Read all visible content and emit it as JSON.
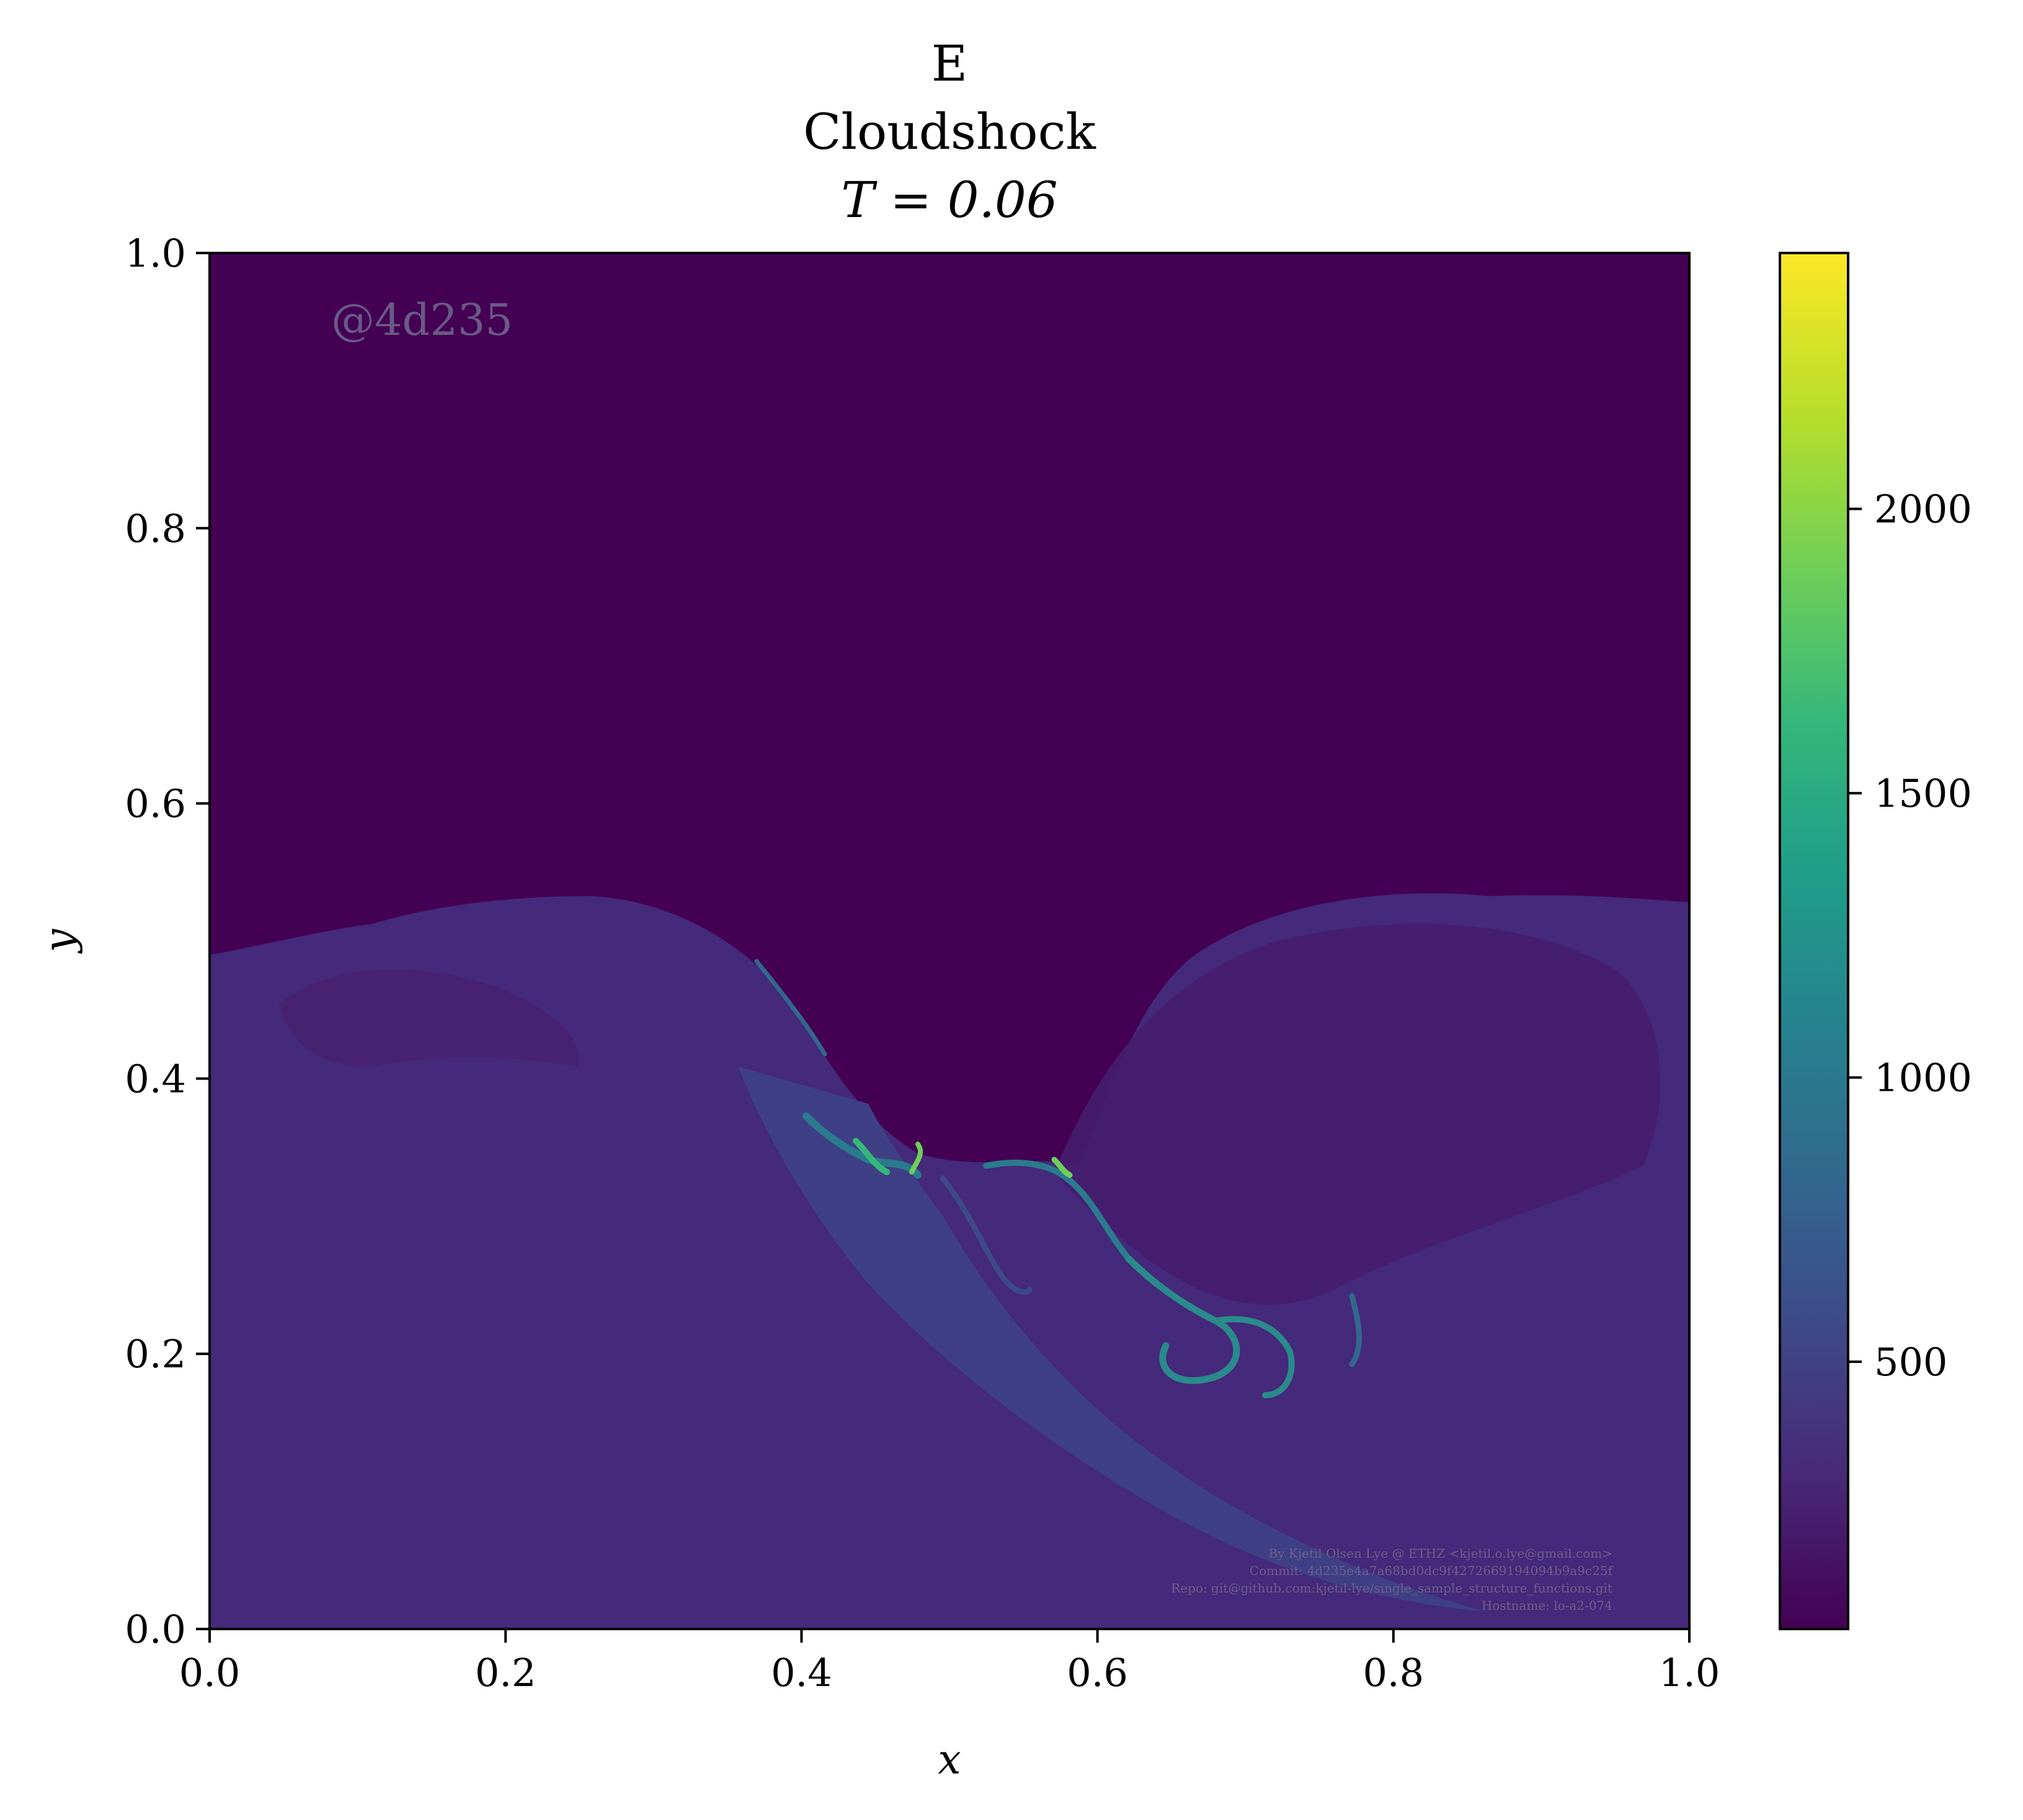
{
  "chart_data": {
    "type": "heatmap",
    "title_lines": [
      "E",
      "Cloudshock",
      "T = 0.06"
    ],
    "xlabel": "x",
    "ylabel": "y",
    "xlim": [
      0.0,
      1.0
    ],
    "ylim": [
      0.0,
      1.0
    ],
    "xticks": [
      0.0,
      0.2,
      0.4,
      0.6,
      0.8,
      1.0
    ],
    "xtick_labels": [
      "0.0",
      "0.2",
      "0.4",
      "0.6",
      "0.8",
      "1.0"
    ],
    "yticks": [
      0.0,
      0.2,
      0.4,
      0.6,
      0.8,
      1.0
    ],
    "ytick_labels": [
      "0.0",
      "0.2",
      "0.4",
      "0.6",
      "0.8",
      "1.0"
    ],
    "colorbar": {
      "colormap": "viridis",
      "range": [
        30,
        2450
      ],
      "ticks": [
        500,
        1000,
        1500,
        2000
      ],
      "tick_labels": [
        "500",
        "1000",
        "1500",
        "2000"
      ]
    },
    "colors": [
      "#440154",
      "#482878",
      "#3e4989",
      "#31688e",
      "#26828e",
      "#1f9e89",
      "#35b779",
      "#6ece58",
      "#b5de2b",
      "#fde725"
    ],
    "watermark": "@4d235",
    "credits": [
      "By Kjetil Olsen Lye @ ETHZ <kjetil.o.lye@gmail.com>",
      "Commit: 4d235e4a7a68bd0dc9f4272669194094b9a9c25f",
      "Repo: git@github.com:kjetil-lye/single_sample_structure_functions.git",
      "Hostname: lo-a2-074"
    ],
    "features": {
      "background_upper": 30,
      "shocked_region": 330,
      "bright_filaments": 1650
    }
  }
}
